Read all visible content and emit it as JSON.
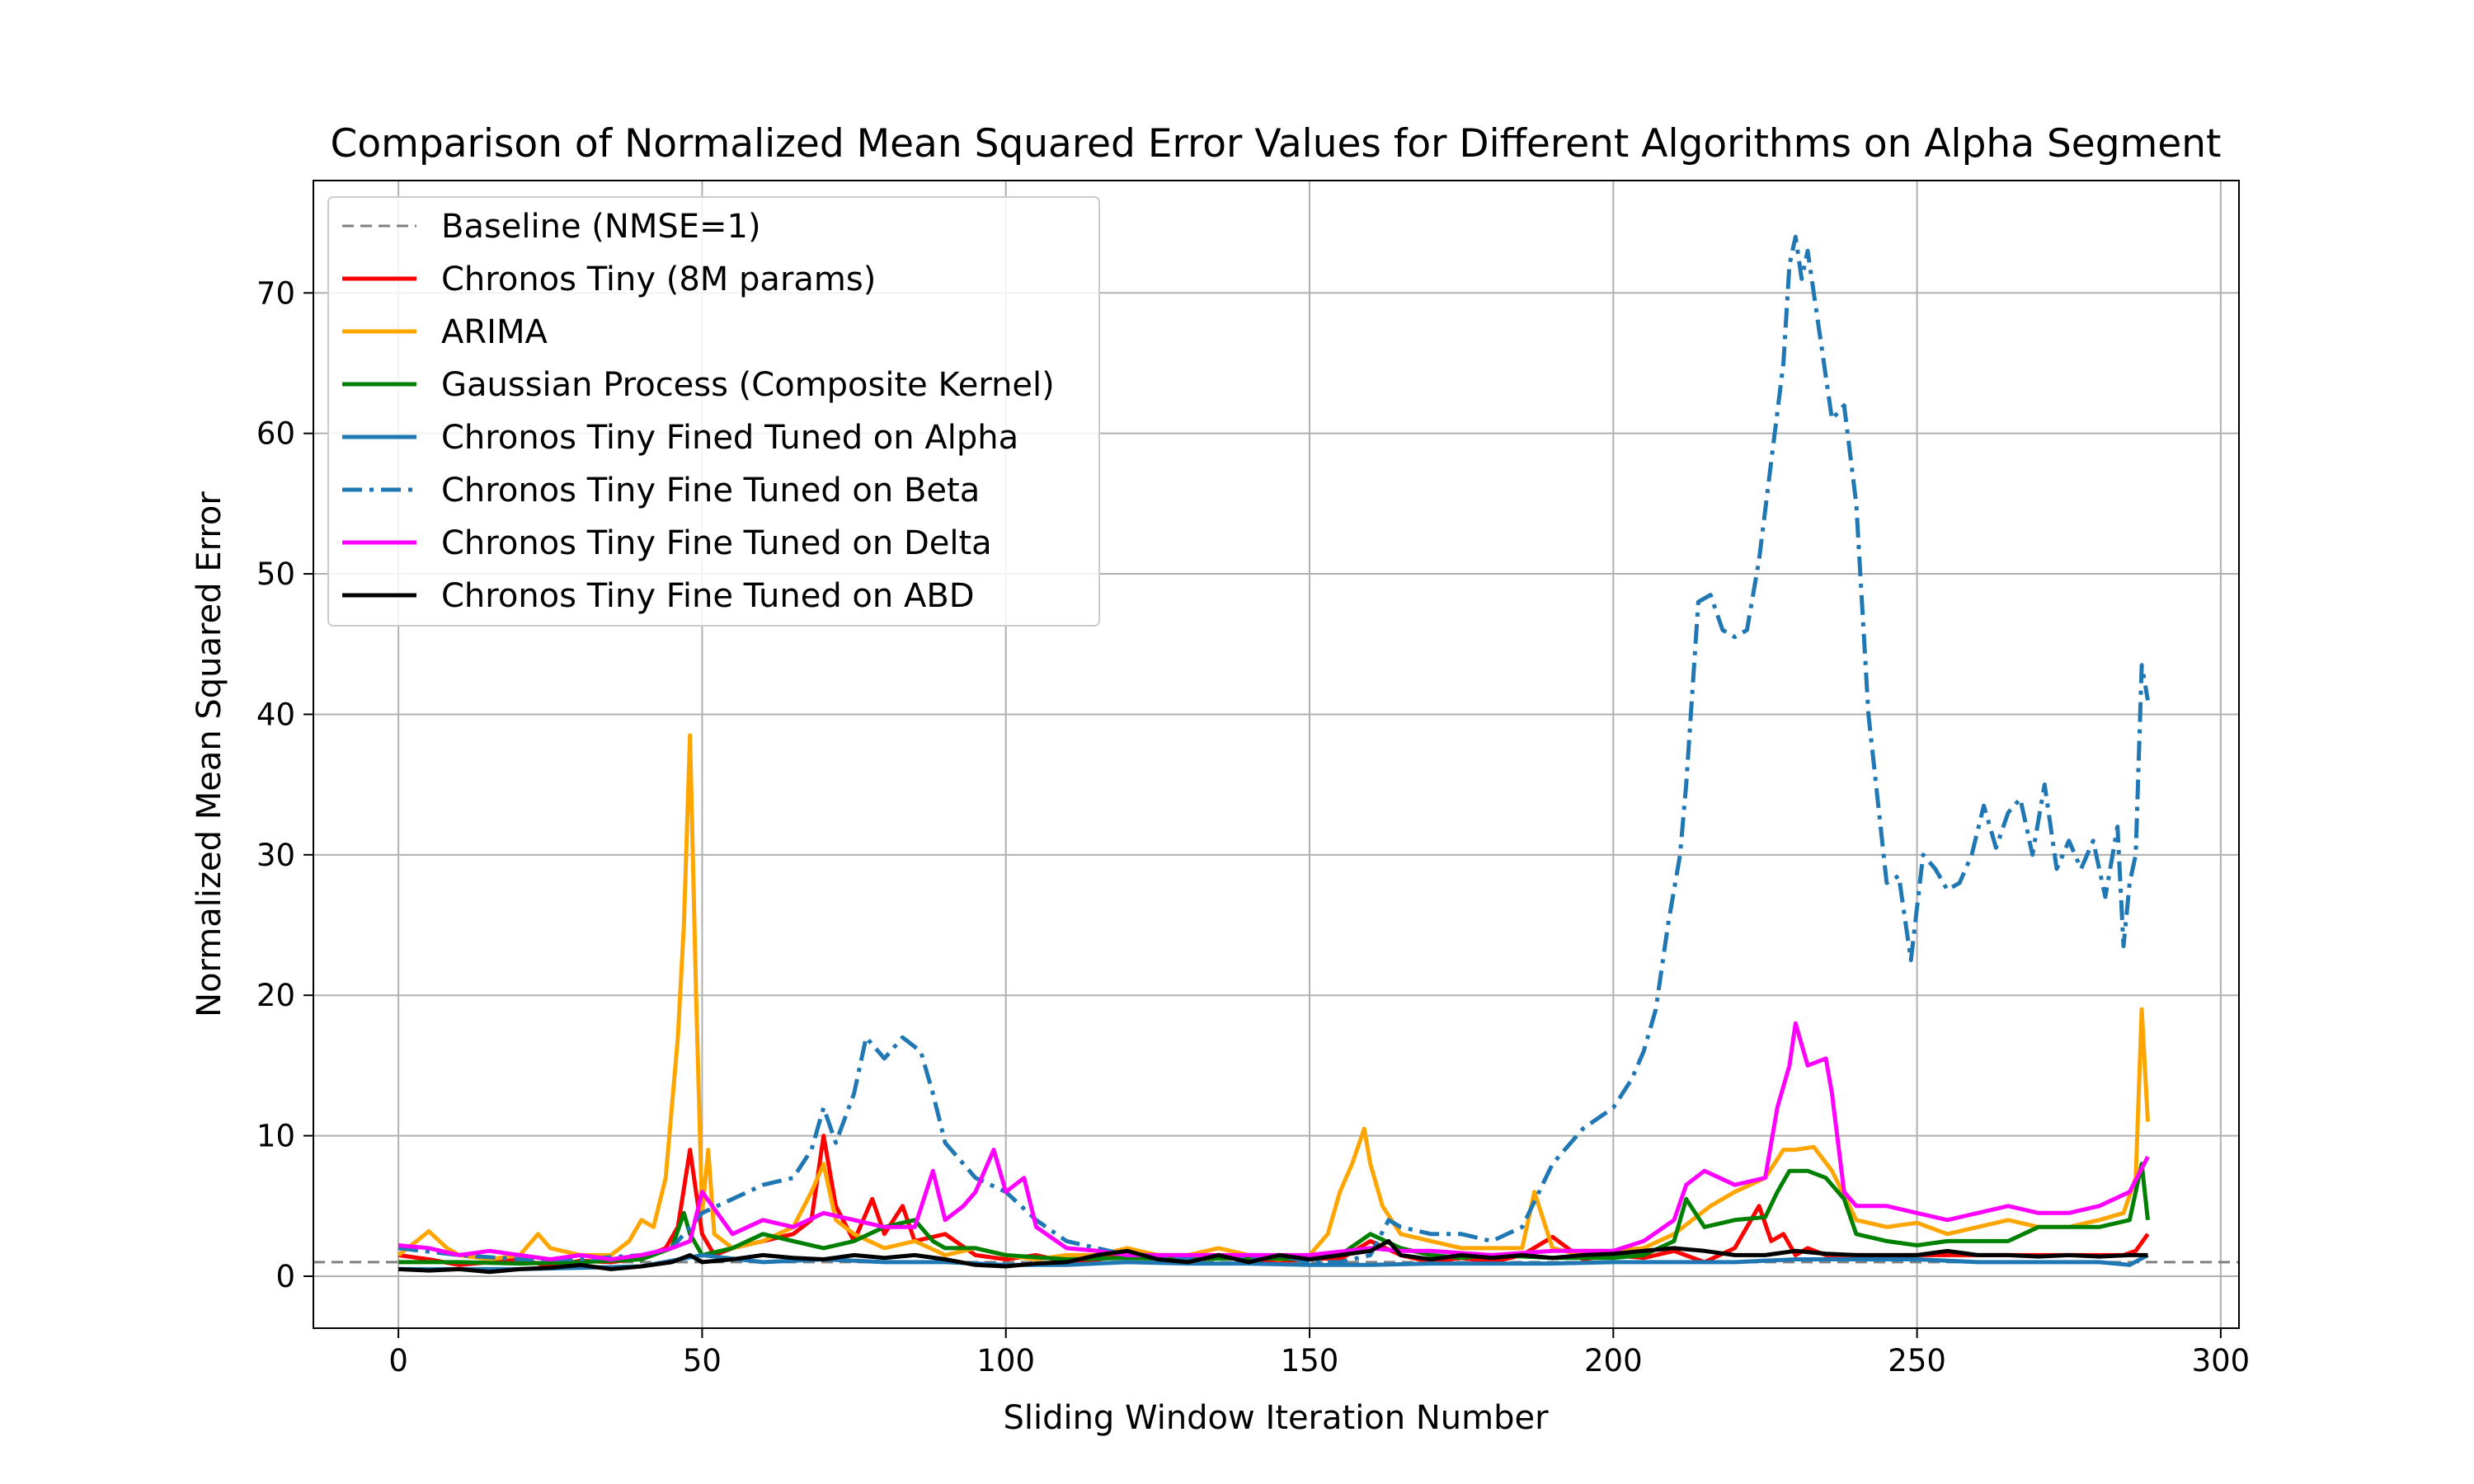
{
  "chart_data": {
    "type": "line",
    "title": "Comparison of Normalized Mean Squared Error Values for Different Algorithms on Alpha Segment",
    "xlabel": "Sliding Window Iteration Number",
    "ylabel": "Normalized Mean Squared Error",
    "xlim": [
      -14,
      303
    ],
    "ylim": [
      -3.7,
      78
    ],
    "xticks": [
      0,
      50,
      100,
      150,
      200,
      250,
      300
    ],
    "yticks": [
      0,
      10,
      20,
      30,
      40,
      50,
      60,
      70
    ],
    "grid": true,
    "legend_position": "upper-left",
    "baseline": {
      "name": "Baseline (NMSE=1)",
      "y": 1,
      "color": "#808080",
      "style": "dashed"
    },
    "series": [
      {
        "name": "Chronos Tiny (8M params)",
        "color": "#ff0000",
        "style": "solid",
        "x": [
          0,
          5,
          10,
          15,
          20,
          25,
          30,
          35,
          40,
          44,
          46,
          48,
          50,
          52,
          55,
          60,
          65,
          68,
          70,
          72,
          75,
          78,
          80,
          83,
          85,
          90,
          95,
          100,
          105,
          110,
          115,
          120,
          125,
          130,
          135,
          140,
          145,
          150,
          155,
          160,
          165,
          170,
          175,
          180,
          185,
          190,
          195,
          200,
          205,
          210,
          215,
          220,
          224,
          226,
          228,
          230,
          232,
          235,
          240,
          245,
          250,
          255,
          260,
          265,
          270,
          275,
          280,
          284,
          286,
          288
        ],
        "y": [
          1.5,
          1.2,
          0.8,
          1.0,
          1.2,
          0.7,
          1.1,
          1.0,
          1.3,
          2.0,
          3.5,
          9.0,
          3.0,
          1.5,
          2.0,
          2.5,
          3.0,
          4.0,
          10.0,
          5.0,
          2.5,
          5.5,
          3.0,
          5.0,
          2.5,
          3.0,
          1.5,
          1.2,
          1.5,
          1.0,
          1.2,
          1.5,
          1.3,
          1.0,
          1.5,
          1.2,
          1.0,
          1.3,
          1.2,
          2.5,
          1.5,
          1.0,
          1.3,
          1.0,
          1.5,
          2.8,
          1.2,
          1.5,
          1.3,
          1.8,
          1.0,
          2.0,
          5.0,
          2.5,
          3.0,
          1.5,
          2.0,
          1.5,
          1.5,
          1.5,
          1.5,
          1.5,
          1.5,
          1.5,
          1.5,
          1.5,
          1.5,
          1.5,
          1.8,
          3.0
        ]
      },
      {
        "name": "ARIMA",
        "color": "#ffa500",
        "style": "solid",
        "x": [
          0,
          3,
          5,
          8,
          10,
          15,
          20,
          23,
          25,
          30,
          35,
          38,
          40,
          42,
          44,
          46,
          47,
          48,
          49,
          50,
          51,
          52,
          55,
          60,
          65,
          68,
          70,
          72,
          75,
          80,
          85,
          90,
          95,
          100,
          105,
          110,
          115,
          120,
          125,
          130,
          135,
          140,
          145,
          150,
          153,
          155,
          157,
          159,
          160,
          162,
          165,
          170,
          175,
          180,
          185,
          187,
          190,
          195,
          200,
          205,
          210,
          213,
          216,
          220,
          225,
          228,
          230,
          233,
          236,
          240,
          245,
          250,
          255,
          260,
          265,
          270,
          275,
          280,
          284,
          286,
          287,
          288
        ],
        "y": [
          1.5,
          2.5,
          3.2,
          2.0,
          1.5,
          1.2,
          1.5,
          3.0,
          2.0,
          1.5,
          1.5,
          2.5,
          4.0,
          3.5,
          7.0,
          17.0,
          25.0,
          38.5,
          20.0,
          4.5,
          9.0,
          3.0,
          2.0,
          2.5,
          3.5,
          6.0,
          8.0,
          4.0,
          3.0,
          2.0,
          2.5,
          1.5,
          2.0,
          1.5,
          1.2,
          1.5,
          1.5,
          2.0,
          1.5,
          1.5,
          2.0,
          1.5,
          1.2,
          1.5,
          3.0,
          6.0,
          8.0,
          10.5,
          8.0,
          5.0,
          3.0,
          2.5,
          2.0,
          2.0,
          2.0,
          6.0,
          2.0,
          1.5,
          1.8,
          2.0,
          3.0,
          4.0,
          5.0,
          6.0,
          7.0,
          9.0,
          9.0,
          9.2,
          7.5,
          4.0,
          3.5,
          3.8,
          3.0,
          3.5,
          4.0,
          3.5,
          3.5,
          4.0,
          4.5,
          7.0,
          19.0,
          11.0
        ]
      },
      {
        "name": "Gaussian Process (Composite Kernel)",
        "color": "#008000",
        "style": "solid",
        "x": [
          0,
          10,
          20,
          30,
          40,
          45,
          47,
          48,
          50,
          55,
          60,
          65,
          70,
          75,
          80,
          85,
          88,
          90,
          95,
          100,
          110,
          120,
          130,
          140,
          150,
          155,
          160,
          165,
          170,
          175,
          180,
          190,
          200,
          205,
          210,
          212,
          215,
          220,
          225,
          227,
          229,
          232,
          235,
          238,
          240,
          245,
          250,
          255,
          260,
          265,
          270,
          275,
          280,
          285,
          287,
          288
        ],
        "y": [
          1.0,
          1.0,
          0.9,
          1.0,
          1.2,
          2.0,
          4.5,
          3.0,
          1.5,
          2.0,
          3.0,
          2.5,
          2.0,
          2.5,
          3.5,
          4.0,
          2.5,
          2.0,
          2.0,
          1.5,
          1.2,
          1.3,
          1.2,
          1.3,
          1.2,
          1.5,
          3.0,
          2.0,
          1.5,
          1.3,
          1.5,
          1.3,
          1.3,
          1.5,
          2.5,
          5.5,
          3.5,
          4.0,
          4.2,
          6.0,
          7.5,
          7.5,
          7.0,
          5.5,
          3.0,
          2.5,
          2.2,
          2.5,
          2.5,
          2.5,
          3.5,
          3.5,
          3.5,
          4.0,
          8.0,
          4.0
        ]
      },
      {
        "name": "Chronos Tiny Fined Tuned on Alpha",
        "color": "#1f77b4",
        "style": "solid",
        "x": [
          0,
          10,
          20,
          30,
          40,
          50,
          60,
          70,
          80,
          90,
          100,
          110,
          120,
          130,
          140,
          150,
          160,
          170,
          180,
          190,
          200,
          210,
          220,
          230,
          240,
          250,
          260,
          270,
          280,
          285,
          288
        ],
        "y": [
          0.5,
          0.5,
          0.5,
          0.6,
          0.7,
          1.5,
          1.0,
          1.2,
          1.0,
          1.0,
          0.8,
          0.8,
          1.0,
          0.9,
          0.9,
          0.8,
          0.8,
          0.9,
          0.9,
          0.9,
          1.0,
          1.0,
          1.0,
          1.2,
          1.2,
          1.2,
          1.0,
          1.0,
          1.0,
          0.8,
          1.5
        ]
      },
      {
        "name": "Chronos Tiny Fine Tuned on Beta",
        "color": "#1f77b4",
        "style": "dashdot",
        "x": [
          0,
          10,
          20,
          30,
          40,
          45,
          48,
          50,
          55,
          60,
          65,
          68,
          70,
          72,
          75,
          77,
          80,
          83,
          86,
          88,
          90,
          95,
          100,
          105,
          110,
          115,
          120,
          125,
          130,
          135,
          140,
          145,
          150,
          155,
          160,
          163,
          165,
          170,
          175,
          180,
          185,
          190,
          195,
          200,
          203,
          205,
          207,
          209,
          211,
          212,
          214,
          216,
          218,
          220,
          222,
          224,
          226,
          228,
          229,
          230,
          231,
          232,
          234,
          236,
          238,
          240,
          242,
          245,
          247,
          249,
          251,
          253,
          255,
          257,
          259,
          261,
          263,
          265,
          267,
          269,
          271,
          273,
          275,
          277,
          279,
          281,
          283,
          284,
          285,
          286,
          287,
          288
        ],
        "y": [
          2.0,
          1.5,
          1.2,
          1.2,
          1.5,
          2.0,
          3.5,
          4.5,
          5.5,
          6.5,
          7.0,
          9.0,
          12.0,
          9.5,
          13.0,
          17.0,
          15.5,
          17.0,
          16.0,
          13.0,
          9.5,
          7.0,
          6.0,
          4.0,
          2.5,
          2.0,
          1.5,
          1.5,
          1.2,
          1.5,
          1.2,
          1.5,
          1.0,
          1.0,
          1.5,
          4.0,
          3.5,
          3.0,
          3.0,
          2.5,
          3.5,
          8.0,
          10.5,
          12.0,
          14.0,
          16.0,
          19.0,
          25.0,
          30.0,
          35.0,
          48.0,
          48.5,
          46.0,
          45.5,
          46.0,
          51.0,
          58.0,
          65.0,
          72.0,
          74.0,
          71.0,
          73.0,
          67.0,
          61.0,
          62.0,
          55.0,
          40.0,
          28.0,
          28.5,
          22.5,
          30.0,
          29.0,
          27.5,
          28.0,
          30.0,
          33.5,
          30.5,
          33.0,
          34.0,
          30.0,
          35.0,
          29.0,
          31.0,
          29.0,
          31.0,
          27.0,
          32.0,
          23.5,
          28.0,
          30.0,
          43.5,
          41.0
        ]
      },
      {
        "name": "Chronos Tiny Fine Tuned on Delta",
        "color": "#ff00ff",
        "style": "solid",
        "x": [
          0,
          5,
          10,
          15,
          20,
          25,
          30,
          35,
          40,
          45,
          48,
          50,
          55,
          60,
          65,
          70,
          75,
          80,
          85,
          88,
          90,
          93,
          95,
          98,
          100,
          103,
          105,
          110,
          115,
          120,
          130,
          140,
          150,
          160,
          165,
          170,
          180,
          190,
          200,
          205,
          210,
          212,
          215,
          220,
          225,
          227,
          229,
          230,
          232,
          235,
          236,
          238,
          240,
          245,
          250,
          255,
          260,
          265,
          270,
          275,
          280,
          285,
          288
        ],
        "y": [
          2.2,
          2.0,
          1.5,
          1.8,
          1.5,
          1.2,
          1.5,
          1.2,
          1.5,
          2.0,
          2.5,
          6.0,
          3.0,
          4.0,
          3.5,
          4.5,
          4.0,
          3.5,
          3.5,
          7.5,
          4.0,
          5.0,
          6.0,
          9.0,
          6.0,
          7.0,
          3.5,
          2.0,
          1.8,
          1.5,
          1.5,
          1.5,
          1.5,
          2.0,
          1.8,
          1.8,
          1.5,
          1.8,
          1.8,
          2.5,
          4.0,
          6.5,
          7.5,
          6.5,
          7.0,
          12.0,
          15.0,
          18.0,
          15.0,
          15.5,
          13.0,
          6.0,
          5.0,
          5.0,
          4.5,
          4.0,
          4.5,
          5.0,
          4.5,
          4.5,
          5.0,
          6.0,
          8.5
        ]
      },
      {
        "name": "Chronos Tiny Fine Tuned on ABD",
        "color": "#000000",
        "style": "solid",
        "x": [
          0,
          5,
          10,
          15,
          20,
          25,
          30,
          35,
          40,
          45,
          48,
          50,
          55,
          60,
          65,
          70,
          75,
          80,
          85,
          90,
          95,
          100,
          105,
          110,
          115,
          120,
          125,
          130,
          135,
          140,
          145,
          150,
          155,
          160,
          163,
          165,
          170,
          175,
          180,
          185,
          190,
          195,
          200,
          205,
          210,
          215,
          220,
          225,
          230,
          235,
          240,
          245,
          250,
          255,
          260,
          265,
          270,
          275,
          280,
          285,
          288
        ],
        "y": [
          0.5,
          0.4,
          0.5,
          0.3,
          0.5,
          0.6,
          0.8,
          0.5,
          0.7,
          1.0,
          1.5,
          1.0,
          1.2,
          1.5,
          1.3,
          1.2,
          1.5,
          1.3,
          1.5,
          1.2,
          0.8,
          0.7,
          0.9,
          1.0,
          1.5,
          1.8,
          1.2,
          1.0,
          1.5,
          1.0,
          1.5,
          1.2,
          1.5,
          1.8,
          2.5,
          1.5,
          1.2,
          1.5,
          1.3,
          1.5,
          1.3,
          1.5,
          1.6,
          1.8,
          2.0,
          1.8,
          1.5,
          1.5,
          1.8,
          1.6,
          1.5,
          1.5,
          1.5,
          1.8,
          1.5,
          1.5,
          1.4,
          1.5,
          1.4,
          1.5,
          1.5
        ]
      }
    ]
  }
}
